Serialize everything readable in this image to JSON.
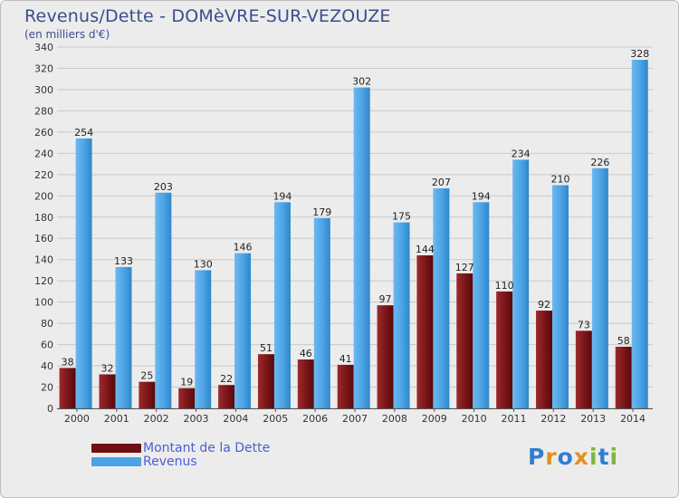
{
  "title": "Revenus/Dette - DOMèVRE-SUR-VEZOUZE",
  "subtitle": "(en milliers d'€)",
  "logo": {
    "text": "Proxiti",
    "letters": [
      {
        "ch": "P",
        "color": "#2f7fd0"
      },
      {
        "ch": "r",
        "color": "#e0911e"
      },
      {
        "ch": "o",
        "color": "#2f7fd0"
      },
      {
        "ch": "x",
        "color": "#e0911e"
      },
      {
        "ch": "i",
        "color": "#7cb83a"
      },
      {
        "ch": "t",
        "color": "#2f7fd0"
      },
      {
        "ch": "i",
        "color": "#7cb83a"
      }
    ]
  },
  "legend": [
    {
      "label": "Montant de la Dette",
      "color": "#6e0f12"
    },
    {
      "label": "Revenus",
      "color": "#4aa3e4"
    }
  ],
  "chart_data": {
    "type": "bar",
    "categories": [
      "2000",
      "2001",
      "2002",
      "2003",
      "2004",
      "2005",
      "2006",
      "2007",
      "2008",
      "2009",
      "2010",
      "2011",
      "2012",
      "2013",
      "2014"
    ],
    "series": [
      {
        "name": "Montant de la Dette",
        "color": "#7a1518",
        "values": [
          38,
          32,
          25,
          19,
          22,
          51,
          46,
          41,
          97,
          144,
          127,
          110,
          92,
          73,
          58
        ]
      },
      {
        "name": "Revenus",
        "color": "#4aa3e4",
        "values": [
          254,
          133,
          203,
          130,
          146,
          194,
          179,
          302,
          175,
          207,
          194,
          234,
          210,
          226,
          328
        ]
      }
    ],
    "ylim": [
      0,
      340
    ],
    "yticks": [
      0,
      20,
      40,
      60,
      80,
      100,
      120,
      140,
      160,
      180,
      200,
      220,
      240,
      260,
      280,
      300,
      320,
      340
    ],
    "grid": true
  }
}
